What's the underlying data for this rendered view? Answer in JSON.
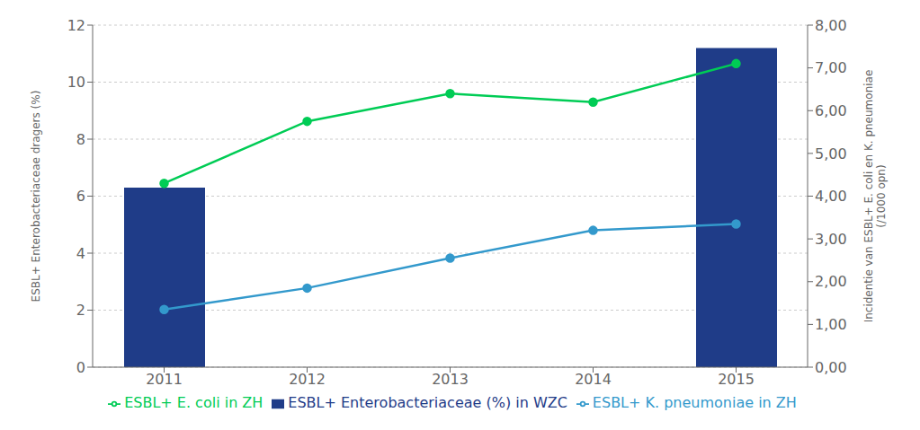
{
  "chart_data": {
    "type": "bar",
    "categories": [
      "2011",
      "2012",
      "2013",
      "2014",
      "2015"
    ],
    "series": [
      {
        "name": "ESBL+ Enterobacteriaceae (%) in WZC",
        "type": "bar",
        "color": "#1F3C88",
        "values": [
          6.3,
          null,
          null,
          null,
          11.2
        ]
      },
      {
        "name": "ESBL+ E. coli in ZH",
        "type": "line",
        "axis": "y2",
        "color": "#00CC55",
        "marker": "circle",
        "values": [
          4.3,
          5.75,
          6.4,
          6.2,
          7.1
        ]
      },
      {
        "name": "ESBL+ K. pneumoniae in ZH",
        "type": "line",
        "axis": "y2",
        "color": "#3399CC",
        "marker": "circle",
        "values": [
          1.35,
          1.85,
          2.55,
          3.2,
          3.35
        ]
      }
    ],
    "ylabel": "ESBL+ Enterobacteriaceae dragers (%)",
    "y2label": "Incidentie van ESBL+ E. coli en K. pneumoniae\n(/1000 opn)",
    "ylim": [
      0,
      12
    ],
    "yticks": [
      0,
      2,
      4,
      6,
      8,
      10,
      12
    ],
    "y2lim": [
      0.0,
      8.0
    ],
    "y2ticks": [
      {
        "value": 0.0,
        "label": "0,00"
      },
      {
        "value": 1.0,
        "label": "1,00"
      },
      {
        "value": 2.0,
        "label": "2,00"
      },
      {
        "value": 3.0,
        "label": "3,00"
      },
      {
        "value": 4.0,
        "label": "4,00"
      },
      {
        "value": 5.0,
        "label": "5,00"
      },
      {
        "value": 6.0,
        "label": "6,00"
      },
      {
        "value": 7.0,
        "label": "7,00"
      },
      {
        "value": 8.0,
        "label": "8,00"
      }
    ],
    "grid": true,
    "legend": "bottom"
  }
}
